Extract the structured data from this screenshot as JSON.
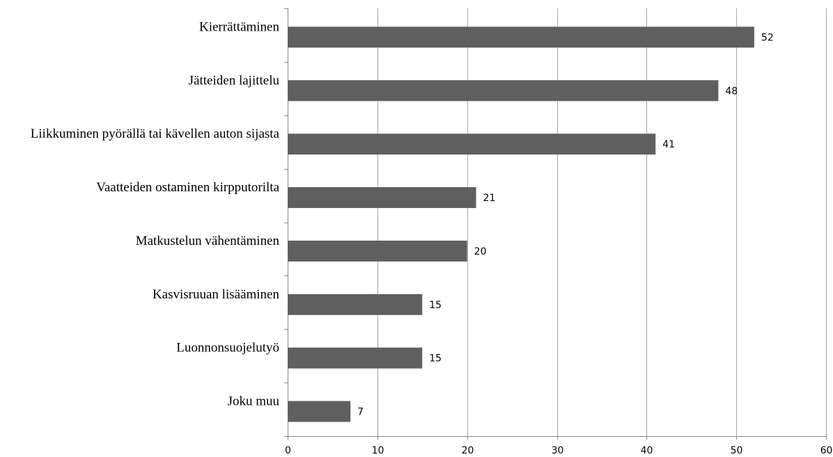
{
  "chart_data": {
    "type": "bar",
    "orientation": "horizontal",
    "categories": [
      "Kierrättäminen",
      "Jätteiden lajittelu",
      "Liikkuminen pyörällä tai kävellen auton sijasta",
      "Vaatteiden ostaminen kirpputorilta",
      "Matkustelun vähentäminen",
      "Kasvisruuan lisääminen",
      "Luonnonsuojelutyö",
      "Joku muu"
    ],
    "values": [
      52,
      48,
      41,
      21,
      20,
      15,
      15,
      7
    ],
    "data_labels": [
      "52",
      "48",
      "41",
      "21",
      "20",
      "15",
      "15",
      "7"
    ],
    "xlim": [
      0,
      60
    ],
    "x_ticks": [
      0,
      10,
      20,
      30,
      40,
      50,
      60
    ],
    "x_tick_labels": [
      "0",
      "10",
      "20",
      "30",
      "40",
      "50",
      "60"
    ],
    "grid": "vertical",
    "legend": "none",
    "bar_color": "#5f5f5f",
    "title": "",
    "xlabel": "",
    "ylabel": ""
  }
}
